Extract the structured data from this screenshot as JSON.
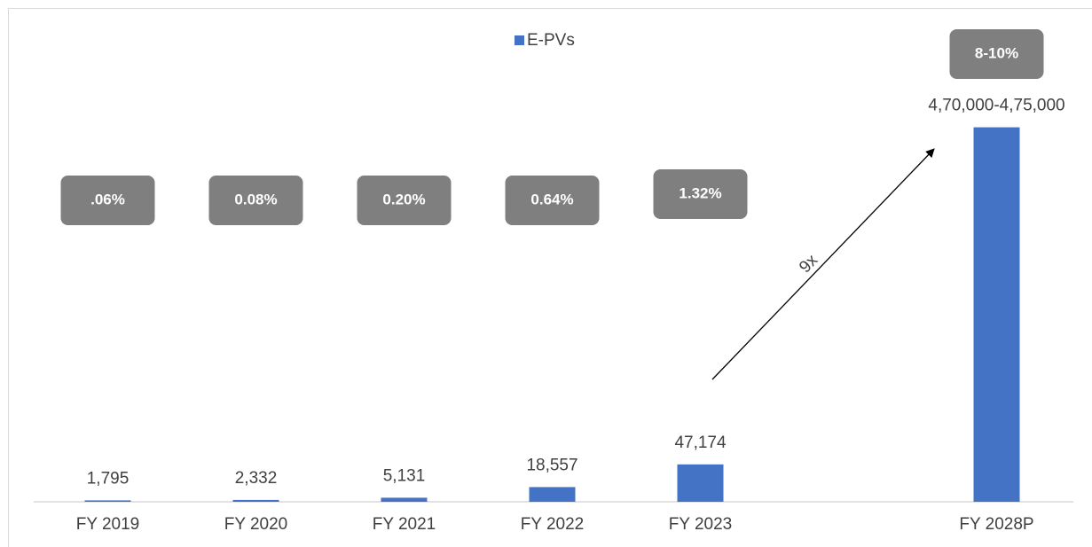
{
  "chart_data": {
    "type": "bar",
    "categories": [
      "FY 2019",
      "FY 2020",
      "FY 2021",
      "FY 2022",
      "FY 2023",
      null,
      "FY 2028P"
    ],
    "series": [
      {
        "name": "E-PVs",
        "color": "#4472c4",
        "values": [
          1795,
          2332,
          5131,
          18557,
          47174,
          null,
          472500
        ],
        "value_labels": [
          "1,795",
          "2,332",
          "5,131",
          "18,557",
          "47,174",
          null,
          "4,70,000-4,75,000"
        ]
      }
    ],
    "share_labels": [
      ".06%",
      "0.08%",
      "0.20%",
      "0.64%",
      "1.32%",
      null,
      "8-10%"
    ],
    "annotation": "9x",
    "ylim": [
      0,
      500000
    ]
  }
}
